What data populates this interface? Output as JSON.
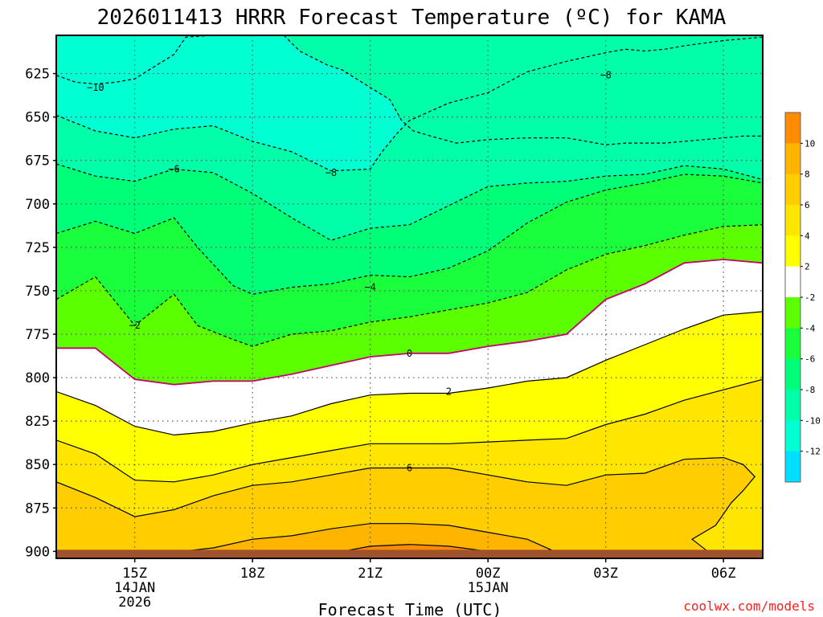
{
  "chart_data": {
    "type": "heatmap",
    "title": "2026011413 HRRR Forecast Temperature (ºC) for KAMA",
    "xlabel": "Forecast Time (UTC)",
    "ylabel": "",
    "credit": "coolwx.com/models",
    "x_ticks": [
      "15Z",
      "18Z",
      "21Z",
      "00Z",
      "03Z",
      "06Z"
    ],
    "x_dates": [
      [
        "14JAN",
        "2026"
      ],
      [
        "",
        ""
      ],
      [
        "",
        ""
      ],
      [
        "15JAN",
        ""
      ],
      [
        "",
        ""
      ],
      [
        "",
        ""
      ]
    ],
    "y_ticks": [
      "625",
      "650",
      "675",
      "700",
      "725",
      "750",
      "775",
      "800",
      "825",
      "850",
      "875",
      "900"
    ],
    "x_range_hours": [
      13.0,
      31.0
    ],
    "y_range_mb": [
      603,
      904
    ],
    "ground_mb": 900,
    "colorbar": {
      "levels": [
        -14,
        -12,
        -10,
        -8,
        -6,
        -4,
        -2,
        2,
        4,
        6,
        8,
        10,
        12
      ],
      "labels": [
        "-12",
        "-10",
        "-8",
        "-6",
        "-4",
        "-2",
        "2",
        "4",
        "6",
        "8",
        "10"
      ],
      "colors": [
        "#00dfff",
        "#00ffd2",
        "#00ffa8",
        "#00ff78",
        "#19ff3c",
        "#5cff00",
        "#ffffff",
        "#ffff00",
        "#ffe600",
        "#ffcd00",
        "#ffb400",
        "#ff8c00"
      ]
    },
    "contours": [
      {
        "level": -10,
        "label": "−10",
        "label_pos": [
          14.0,
          633
        ],
        "points": [
          [
            13,
            626
          ],
          [
            13.5,
            630
          ],
          [
            14,
            631
          ],
          [
            14.5,
            630
          ],
          [
            15,
            628
          ],
          [
            15.5,
            621
          ],
          [
            16,
            614
          ],
          [
            16.3,
            604
          ],
          [
            17,
            603
          ],
          [
            17.4,
            603
          ]
        ]
      },
      {
        "level": -8,
        "label": "−8",
        "label_pos": [
          27.0,
          626
        ],
        "points": [
          [
            18.8,
            603
          ],
          [
            19.2,
            612
          ],
          [
            19.9,
            620
          ],
          [
            20.3,
            623
          ],
          [
            20.5,
            626
          ],
          [
            21.0,
            633
          ],
          [
            21.5,
            640
          ],
          [
            21.8,
            652
          ],
          [
            22.1,
            658
          ],
          [
            22.7,
            662
          ],
          [
            23.2,
            665
          ],
          [
            24.0,
            663
          ],
          [
            25.0,
            662
          ],
          [
            26.0,
            662
          ],
          [
            26.5,
            664
          ],
          [
            27.0,
            666
          ],
          [
            27.5,
            665
          ],
          [
            28.5,
            665
          ],
          [
            29.5,
            663
          ],
          [
            30.5,
            661
          ],
          [
            31,
            661
          ]
        ]
      },
      {
        "level": -8,
        "label": "−8",
        "label_pos": [
          20.0,
          682
        ],
        "points": [
          [
            13,
            649
          ],
          [
            14,
            658
          ],
          [
            15,
            662
          ],
          [
            16,
            657
          ],
          [
            17,
            655
          ],
          [
            18,
            664
          ],
          [
            19,
            670
          ],
          [
            20,
            681
          ],
          [
            21,
            680
          ],
          [
            21.3,
            670
          ],
          [
            21.7,
            659
          ],
          [
            22,
            652
          ],
          [
            23,
            642
          ],
          [
            24,
            636
          ],
          [
            25,
            624
          ],
          [
            26,
            618
          ],
          [
            27,
            613
          ],
          [
            27.5,
            611
          ],
          [
            28,
            612
          ],
          [
            28.5,
            611
          ],
          [
            29,
            609
          ],
          [
            30,
            606
          ],
          [
            31,
            604
          ]
        ]
      },
      {
        "level": -6,
        "label": "−6",
        "label_pos": [
          16.0,
          680
        ],
        "points": [
          [
            13,
            677
          ],
          [
            14,
            684
          ],
          [
            15,
            687
          ],
          [
            16,
            680
          ],
          [
            17,
            682
          ],
          [
            18,
            694
          ],
          [
            19,
            708
          ],
          [
            20,
            721
          ],
          [
            21,
            714
          ],
          [
            22,
            712
          ],
          [
            23,
            701
          ],
          [
            24,
            690
          ],
          [
            25,
            688
          ],
          [
            26,
            687
          ],
          [
            27,
            684
          ],
          [
            28,
            683
          ],
          [
            29,
            678
          ],
          [
            30,
            680
          ],
          [
            31,
            686
          ]
        ]
      },
      {
        "level": -4,
        "label": "−4",
        "label_pos": [
          21.0,
          748
        ],
        "points": [
          [
            13,
            717
          ],
          [
            14,
            710
          ],
          [
            15,
            717
          ],
          [
            16,
            708
          ],
          [
            16.6,
            725
          ],
          [
            17.5,
            747
          ],
          [
            18,
            752
          ],
          [
            19,
            748
          ],
          [
            20,
            746
          ],
          [
            21,
            741
          ],
          [
            22,
            742
          ],
          [
            23,
            737
          ],
          [
            24,
            727
          ],
          [
            25,
            711
          ],
          [
            26,
            699
          ],
          [
            27,
            692
          ],
          [
            28,
            688
          ],
          [
            29,
            683
          ],
          [
            30,
            684
          ],
          [
            31,
            688
          ]
        ]
      },
      {
        "level": -2,
        "label": "−2",
        "label_pos": [
          15.0,
          770
        ],
        "points": [
          [
            13,
            755
          ],
          [
            14,
            742
          ],
          [
            15,
            770
          ],
          [
            16,
            752
          ],
          [
            16.6,
            770
          ],
          [
            17.5,
            778
          ],
          [
            18,
            782
          ],
          [
            19,
            775
          ],
          [
            20,
            773
          ],
          [
            21,
            768
          ],
          [
            22,
            765
          ],
          [
            23,
            761
          ],
          [
            24,
            757
          ],
          [
            25,
            751
          ],
          [
            26,
            738
          ],
          [
            27,
            729
          ],
          [
            28,
            724
          ],
          [
            29,
            718
          ],
          [
            30,
            713
          ],
          [
            31,
            712
          ]
        ]
      },
      {
        "level": 0,
        "label": "0",
        "label_pos": [
          22.0,
          786
        ],
        "points": [
          [
            13,
            783
          ],
          [
            14,
            783
          ],
          [
            15,
            801
          ],
          [
            16,
            804
          ],
          [
            17,
            802
          ],
          [
            18,
            802
          ],
          [
            19,
            798
          ],
          [
            20,
            793
          ],
          [
            21,
            788
          ],
          [
            22,
            786
          ],
          [
            23,
            786
          ],
          [
            24,
            782
          ],
          [
            25,
            779
          ],
          [
            26,
            775
          ],
          [
            27,
            755
          ],
          [
            28,
            746
          ],
          [
            29,
            734
          ],
          [
            30,
            732
          ],
          [
            31,
            734
          ]
        ]
      },
      {
        "level": 2,
        "label": "2",
        "label_pos": [
          23.0,
          808
        ],
        "points": [
          [
            13,
            808
          ],
          [
            14,
            816
          ],
          [
            15,
            828
          ],
          [
            16,
            833
          ],
          [
            17,
            831
          ],
          [
            18,
            826
          ],
          [
            19,
            822
          ],
          [
            20,
            815
          ],
          [
            21,
            810
          ],
          [
            22,
            809
          ],
          [
            23,
            809
          ],
          [
            24,
            806
          ],
          [
            25,
            802
          ],
          [
            26,
            800
          ],
          [
            27,
            790
          ],
          [
            28,
            781
          ],
          [
            29,
            772
          ],
          [
            30,
            764
          ],
          [
            31,
            762
          ]
        ]
      },
      {
        "level": 4,
        "label": "",
        "label_pos": null,
        "points": [
          [
            13,
            836
          ],
          [
            14,
            844
          ],
          [
            15,
            859
          ],
          [
            16,
            860
          ],
          [
            17,
            856
          ],
          [
            18,
            850
          ],
          [
            19,
            846
          ],
          [
            20,
            842
          ],
          [
            21,
            838
          ],
          [
            22,
            838
          ],
          [
            23,
            838
          ],
          [
            24,
            837
          ],
          [
            25,
            836
          ],
          [
            26,
            835
          ],
          [
            27,
            827
          ],
          [
            28,
            821
          ],
          [
            29,
            813
          ],
          [
            30,
            807
          ],
          [
            31,
            801
          ]
        ]
      },
      {
        "level": 6,
        "label": "6",
        "label_pos": [
          22.0,
          852
        ],
        "points": [
          [
            13,
            860
          ],
          [
            14,
            869
          ],
          [
            15,
            880
          ],
          [
            16,
            876
          ],
          [
            17,
            868
          ],
          [
            18,
            862
          ],
          [
            19,
            860
          ],
          [
            20,
            856
          ],
          [
            21,
            852
          ],
          [
            22,
            852
          ],
          [
            23,
            852
          ],
          [
            24,
            856
          ],
          [
            25,
            860
          ],
          [
            26,
            862
          ],
          [
            27,
            856
          ],
          [
            28,
            855
          ],
          [
            29,
            847
          ],
          [
            30,
            846
          ],
          [
            30.5,
            850
          ],
          [
            30.8,
            857
          ],
          [
            30.5,
            865
          ],
          [
            30.2,
            872
          ],
          [
            29.8,
            885
          ],
          [
            29.2,
            893
          ],
          [
            29.6,
            900
          ]
        ]
      },
      {
        "level": 8,
        "label": "",
        "label_pos": null,
        "points": [
          [
            16.2,
            900
          ],
          [
            17,
            898
          ],
          [
            18,
            893
          ],
          [
            19,
            891
          ],
          [
            20,
            887
          ],
          [
            21,
            884
          ],
          [
            22,
            884
          ],
          [
            23,
            885
          ],
          [
            24,
            889
          ],
          [
            25,
            893
          ],
          [
            25.6,
            899
          ],
          [
            25.4,
            900
          ]
        ]
      },
      {
        "level": 10,
        "label": "",
        "label_pos": null,
        "points": [
          [
            20.3,
            900
          ],
          [
            21,
            897
          ],
          [
            22,
            896
          ],
          [
            23,
            897
          ],
          [
            24,
            900
          ]
        ]
      }
    ]
  }
}
